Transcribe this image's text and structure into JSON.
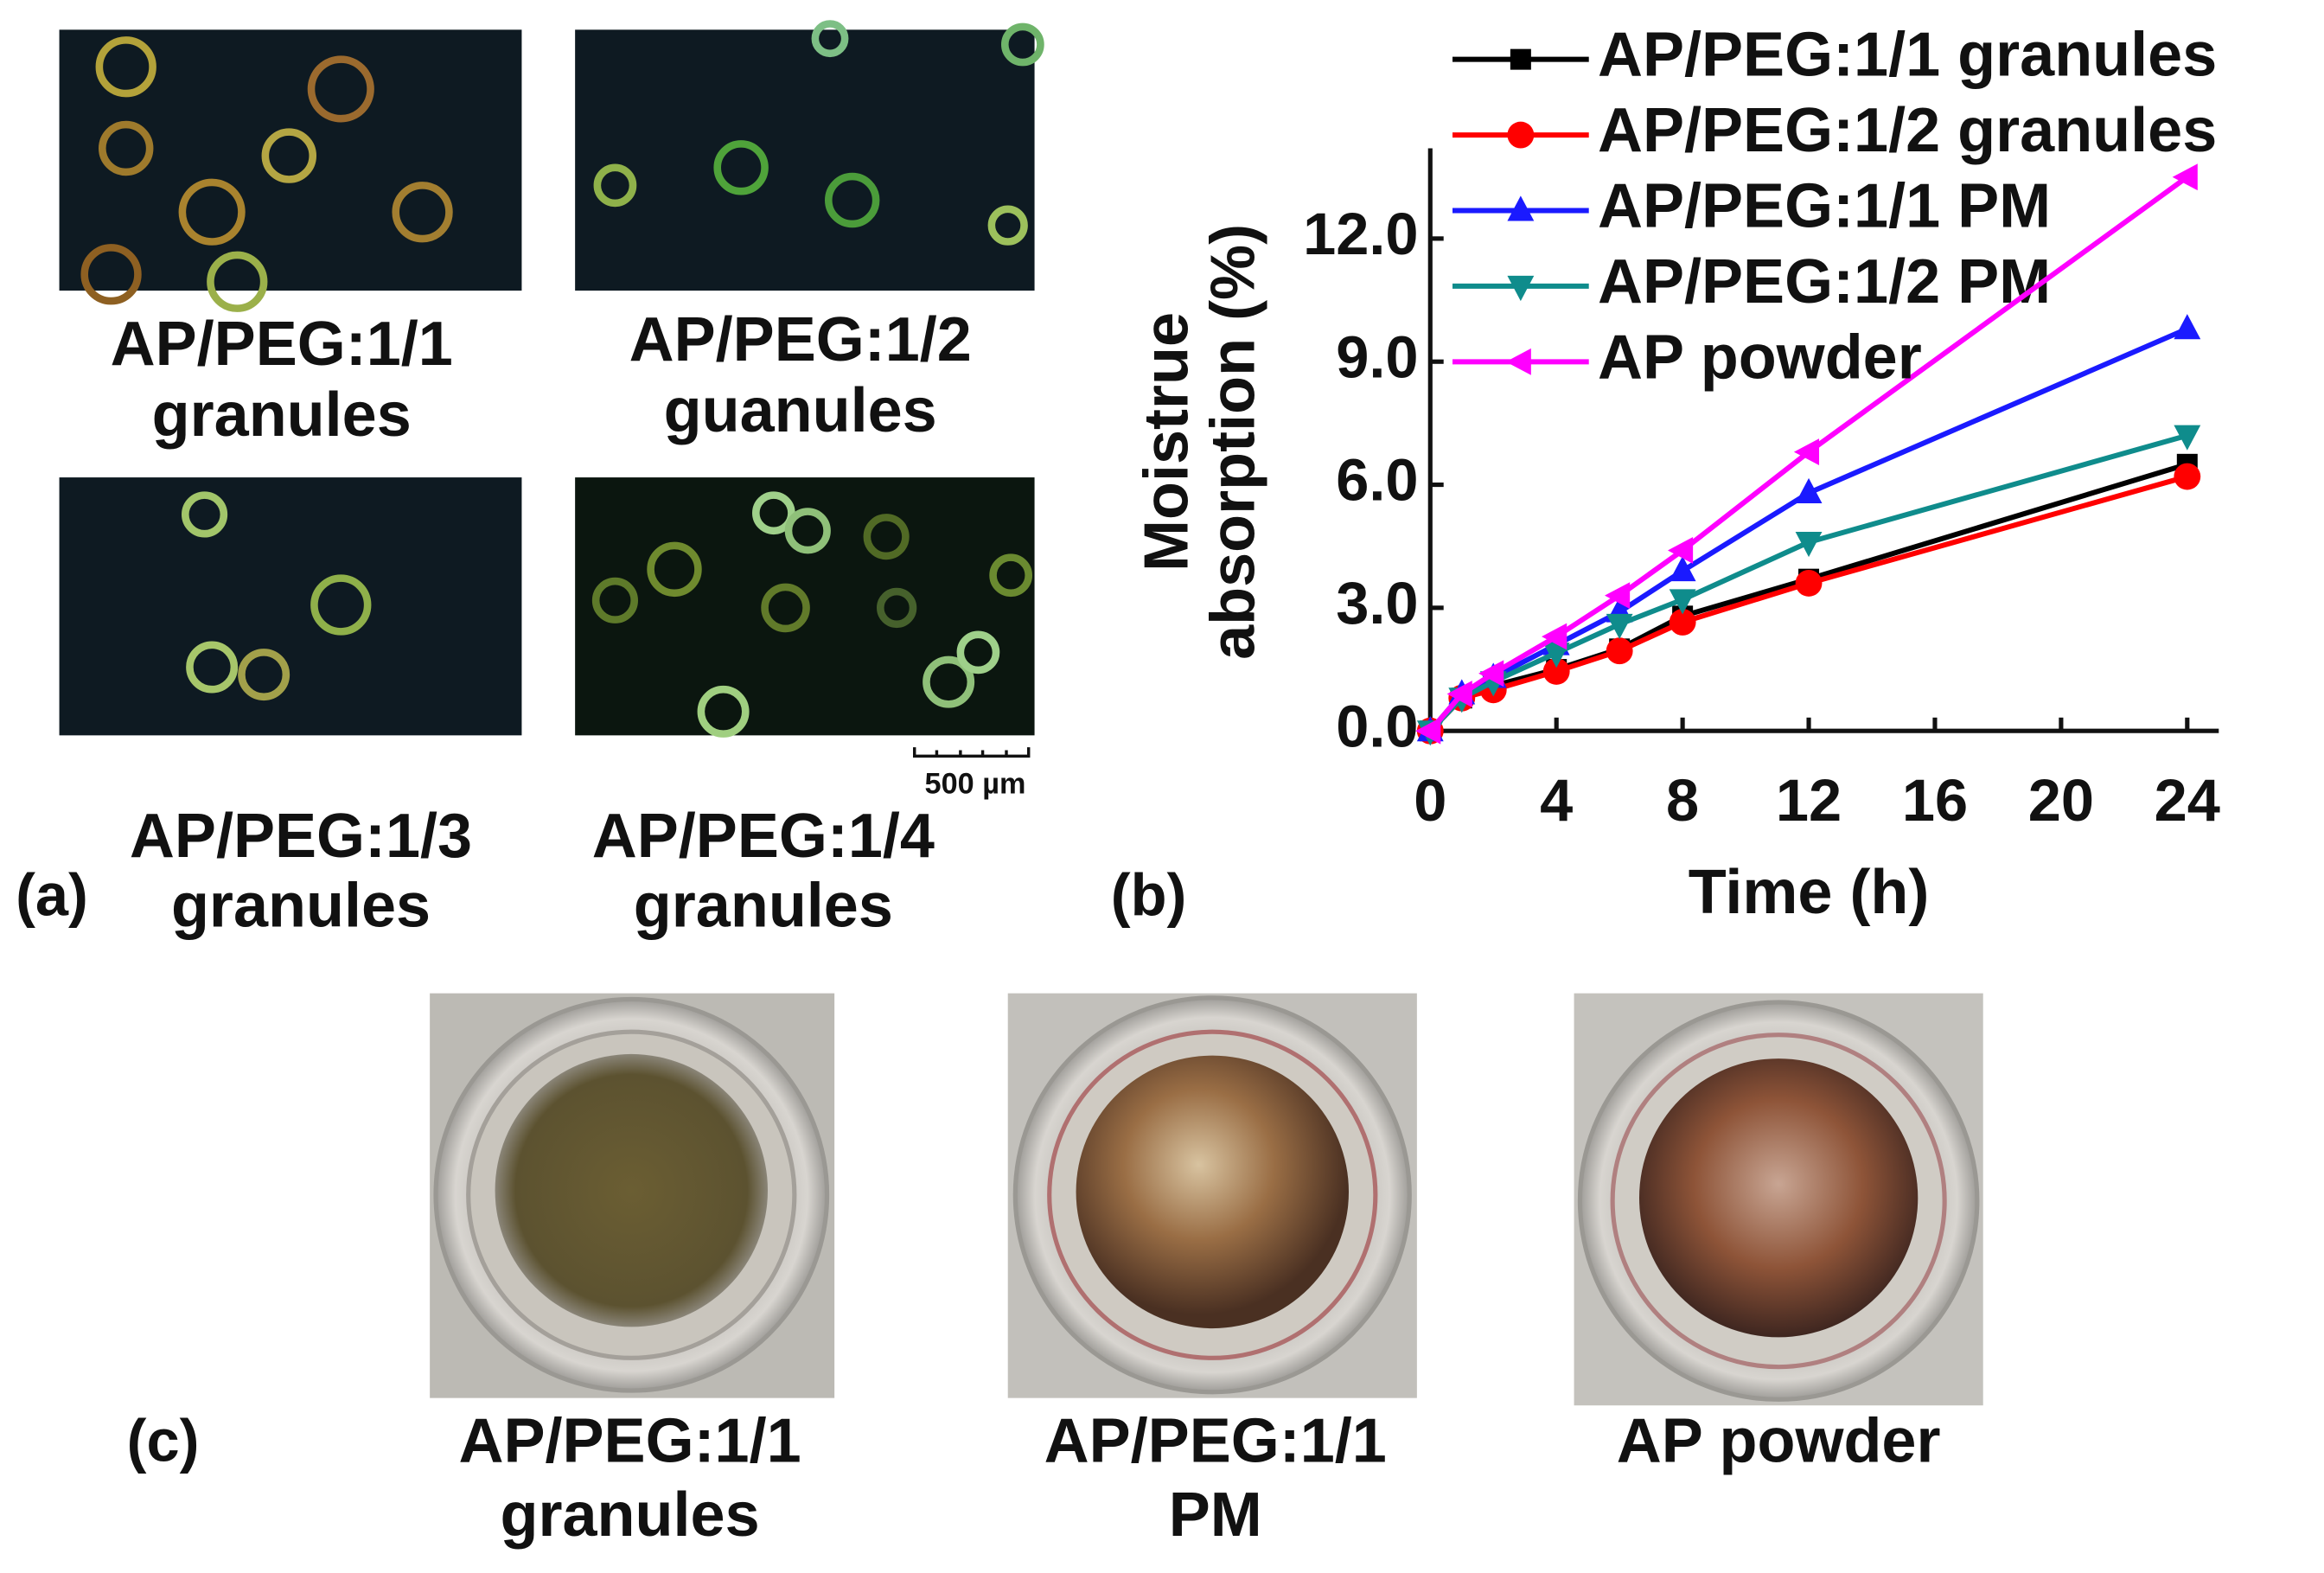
{
  "panel_a": {
    "label": "(a)",
    "captions": [
      [
        "AP/PEG:1/1",
        "granules"
      ],
      [
        "AP/PEG:1/2",
        "guanules"
      ],
      [
        "AP/PEG:1/3",
        "granules"
      ],
      [
        "AP/PEG:1/4",
        "granules"
      ]
    ],
    "scale_bar": "500 µm"
  },
  "panel_b": {
    "label": "(b)"
  },
  "chart_data": {
    "type": "line",
    "x_label": "Time (h)",
    "y_label": [
      "Moistrue",
      "absorption (%)"
    ],
    "x": [
      0,
      1,
      2,
      4,
      6,
      8,
      12,
      24
    ],
    "xlim": [
      0,
      25
    ],
    "ylim": [
      0,
      14.2
    ],
    "xticks": [
      0,
      4,
      8,
      12,
      16,
      20,
      24
    ],
    "yticks": [
      {
        "value": 0,
        "label": "0.0"
      },
      {
        "value": 3,
        "label": "3.0"
      },
      {
        "value": 6,
        "label": "6.0"
      },
      {
        "value": 9,
        "label": "9.0"
      },
      {
        "value": 12,
        "label": "12.0"
      }
    ],
    "grid": false,
    "legend": "top-left",
    "series": [
      {
        "name": "AP/PEG:1/1 granules",
        "color": "#000000",
        "marker": "square",
        "values": [
          0,
          0.8,
          1.1,
          1.5,
          2.0,
          2.8,
          3.7,
          6.5
        ]
      },
      {
        "name": "AP/PEG:1/2 granules",
        "color": "#ff0000",
        "marker": "circle",
        "values": [
          0,
          0.8,
          1.0,
          1.45,
          1.95,
          2.65,
          3.6,
          6.2
        ]
      },
      {
        "name": "AP/PEG:1/1 PM",
        "color": "#1a1aff",
        "marker": "triangle-up",
        "values": [
          0,
          0.9,
          1.3,
          2.1,
          2.9,
          3.9,
          5.8,
          9.8
        ]
      },
      {
        "name": "AP/PEG:1/2 PM",
        "color": "#0f8c8c",
        "marker": "triangle-down",
        "values": [
          0,
          0.8,
          1.2,
          1.9,
          2.6,
          3.2,
          4.6,
          7.2
        ]
      },
      {
        "name": "AP powder",
        "color": "#ff00ff",
        "marker": "triangle-left",
        "values": [
          0,
          0.9,
          1.4,
          2.3,
          3.3,
          4.4,
          6.8,
          13.5
        ]
      }
    ]
  },
  "panel_c": {
    "label": "(c)",
    "captions": [
      [
        "AP/PEG:1/1",
        "granules"
      ],
      [
        "AP/PEG:1/1",
        "PM"
      ],
      [
        "AP powder"
      ]
    ]
  }
}
